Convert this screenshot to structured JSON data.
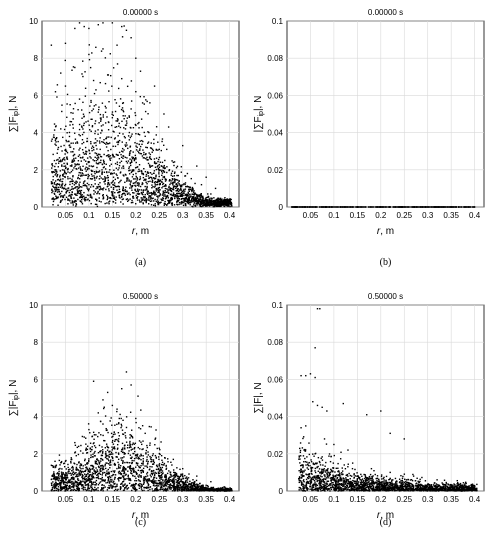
{
  "figure": {
    "panels": [
      {
        "id": "a",
        "title": "0.00000 s",
        "xlabel": "r, m",
        "ylabel": "∑|F_ip|, N",
        "caption": "(a)"
      },
      {
        "id": "b",
        "title": "0.00000 s",
        "xlabel": "r, m",
        "ylabel": "|∑F_ip|, N",
        "caption": "(b)"
      },
      {
        "id": "c",
        "title": "0.50000 s",
        "xlabel": "r, m",
        "ylabel": "∑|F_ip|, N",
        "caption": "(c)"
      },
      {
        "id": "d",
        "title": "0.50000 s",
        "xlabel": "r, m",
        "ylabel": "∑|F|, N",
        "caption": "(d)"
      }
    ]
  },
  "chart_data": [
    {
      "type": "scatter",
      "title": "0.00000 s",
      "xlabel": "r, m",
      "ylabel": "∑|F_ip|, N",
      "xlim": [
        0,
        0.42
      ],
      "ylim": [
        0,
        10
      ],
      "xticks": [
        "0.05",
        "0.1",
        "0.15",
        "0.2",
        "0.25",
        "0.3",
        "0.35",
        "0.4"
      ],
      "yticks": [
        "0",
        "2",
        "4",
        "6",
        "8",
        "10"
      ],
      "grid": true,
      "points": [
        [
          0.02,
          8.7
        ],
        [
          0.04,
          7.2
        ],
        [
          0.05,
          8.8
        ],
        [
          0.07,
          9.6
        ],
        [
          0.08,
          9.9
        ],
        [
          0.09,
          9.7
        ],
        [
          0.1,
          9.6
        ],
        [
          0.12,
          9.8
        ],
        [
          0.13,
          9.9
        ],
        [
          0.15,
          9.9
        ],
        [
          0.17,
          9.7
        ],
        [
          0.18,
          9.5
        ],
        [
          0.19,
          9.1
        ],
        [
          0.05,
          6.5
        ],
        [
          0.07,
          7.5
        ],
        [
          0.1,
          8.2
        ],
        [
          0.13,
          8.5
        ],
        [
          0.16,
          8.7
        ],
        [
          0.2,
          8.0
        ],
        [
          0.21,
          7.3
        ],
        [
          0.24,
          6.5
        ],
        [
          0.26,
          5.0
        ],
        [
          0.06,
          5.5
        ],
        [
          0.08,
          5.8
        ],
        [
          0.11,
          6.8
        ],
        [
          0.14,
          7.1
        ],
        [
          0.17,
          6.9
        ],
        [
          0.2,
          6.2
        ],
        [
          0.23,
          5.6
        ],
        [
          0.27,
          4.3
        ],
        [
          0.3,
          3.3
        ],
        [
          0.33,
          2.2
        ],
        [
          0.35,
          1.6
        ],
        [
          0.37,
          1.0
        ],
        [
          0.39,
          0.5
        ],
        [
          0.4,
          0.2
        ],
        [
          0.03,
          1.8
        ],
        [
          0.03,
          3.5
        ],
        [
          0.04,
          4.2
        ],
        [
          0.09,
          4.5
        ],
        [
          0.12,
          5.1
        ],
        [
          0.15,
          4.8
        ],
        [
          0.18,
          4.4
        ],
        [
          0.22,
          3.8
        ],
        [
          0.25,
          3.1
        ],
        [
          0.28,
          2.4
        ],
        [
          0.31,
          1.8
        ],
        [
          0.34,
          1.2
        ],
        [
          0.36,
          0.7
        ],
        [
          0.38,
          0.4
        ],
        [
          0.05,
          2.2
        ],
        [
          0.08,
          2.8
        ],
        [
          0.11,
          3.2
        ],
        [
          0.14,
          3.4
        ],
        [
          0.17,
          3.0
        ],
        [
          0.2,
          2.6
        ],
        [
          0.23,
          2.2
        ],
        [
          0.26,
          1.9
        ],
        [
          0.29,
          1.3
        ],
        [
          0.32,
          0.9
        ],
        [
          0.35,
          0.5
        ],
        [
          0.06,
          0.9
        ],
        [
          0.1,
          1.2
        ],
        [
          0.13,
          1.5
        ],
        [
          0.16,
          1.7
        ],
        [
          0.19,
          1.4
        ],
        [
          0.22,
          1.1
        ],
        [
          0.25,
          0.8
        ],
        [
          0.28,
          0.6
        ],
        [
          0.31,
          0.4
        ],
        [
          0.34,
          0.2
        ],
        [
          0.37,
          0.1
        ]
      ],
      "density_note": "cloud of ~10000 points; highest density near r=0.2-0.35 m below 2 N"
    },
    {
      "type": "scatter",
      "title": "0.00000 s",
      "xlabel": "r, m",
      "ylabel": "|∑F_ip|, N",
      "xlim": [
        0,
        0.42
      ],
      "ylim": [
        0,
        0.1
      ],
      "xticks": [
        "0.05",
        "0.1",
        "0.15",
        "0.2",
        "0.25",
        "0.3",
        "0.35",
        "0.4"
      ],
      "yticks": [
        "0",
        "0.02",
        "0.04",
        "0.06",
        "0.08",
        "0.1"
      ],
      "grid": true,
      "points": [
        [
          0.01,
          0
        ],
        [
          0.05,
          0
        ],
        [
          0.1,
          0
        ],
        [
          0.15,
          0
        ],
        [
          0.2,
          0
        ],
        [
          0.25,
          0
        ],
        [
          0.3,
          0
        ],
        [
          0.35,
          0
        ],
        [
          0.4,
          0
        ]
      ],
      "note": "all points lie at 0 from r=0.01 to r=0.4"
    },
    {
      "type": "scatter",
      "title": "0.50000 s",
      "xlabel": "r, m",
      "ylabel": "∑|F_ip|, N",
      "xlim": [
        0,
        0.42
      ],
      "ylim": [
        0,
        10
      ],
      "xticks": [
        "0.05",
        "0.1",
        "0.15",
        "0.2",
        "0.25",
        "0.3",
        "0.35",
        "0.4"
      ],
      "yticks": [
        "0",
        "2",
        "4",
        "6",
        "8",
        "10"
      ],
      "grid": true,
      "points": [
        [
          0.11,
          5.9
        ],
        [
          0.14,
          5.3
        ],
        [
          0.17,
          5.5
        ],
        [
          0.18,
          6.4
        ],
        [
          0.19,
          5.7
        ],
        [
          0.13,
          4.9
        ],
        [
          0.15,
          4.6
        ],
        [
          0.12,
          4.2
        ],
        [
          0.16,
          4.4
        ],
        [
          0.2,
          3.9
        ],
        [
          0.1,
          3.3
        ],
        [
          0.13,
          3.6
        ],
        [
          0.22,
          3.1
        ],
        [
          0.07,
          2.6
        ],
        [
          0.09,
          2.9
        ],
        [
          0.25,
          2.3
        ],
        [
          0.05,
          1.6
        ],
        [
          0.28,
          1.7
        ],
        [
          0.3,
          1.2
        ],
        [
          0.33,
          0.8
        ],
        [
          0.36,
          0.5
        ],
        [
          0.39,
          0.2
        ],
        [
          0.03,
          0.3
        ],
        [
          0.04,
          0.8
        ]
      ],
      "density_note": "dense cloud below 2 N for r=0.05-0.4 m, peak values near r=0.15-0.2 m"
    },
    {
      "type": "scatter",
      "title": "0.50000 s",
      "xlabel": "r, m",
      "ylabel": "∑|F|, N",
      "xlim": [
        0,
        0.42
      ],
      "ylim": [
        0,
        0.1
      ],
      "xticks": [
        "0.05",
        "0.1",
        "0.15",
        "0.2",
        "0.25",
        "0.3",
        "0.35",
        "0.4"
      ],
      "yticks": [
        "0",
        "0.02",
        "0.04",
        "0.06",
        "0.08",
        "0.1"
      ],
      "grid": true,
      "points": [
        [
          0.065,
          0.098
        ],
        [
          0.07,
          0.098
        ],
        [
          0.06,
          0.077
        ],
        [
          0.03,
          0.062
        ],
        [
          0.04,
          0.062
        ],
        [
          0.05,
          0.063
        ],
        [
          0.06,
          0.061
        ],
        [
          0.055,
          0.048
        ],
        [
          0.065,
          0.046
        ],
        [
          0.075,
          0.045
        ],
        [
          0.085,
          0.043
        ],
        [
          0.12,
          0.047
        ],
        [
          0.17,
          0.041
        ],
        [
          0.2,
          0.043
        ],
        [
          0.22,
          0.031
        ],
        [
          0.25,
          0.028
        ],
        [
          0.03,
          0.034
        ],
        [
          0.04,
          0.035
        ],
        [
          0.08,
          0.028
        ],
        [
          0.1,
          0.025
        ],
        [
          0.13,
          0.022
        ],
        [
          0.06,
          0.02
        ],
        [
          0.14,
          0.015
        ],
        [
          0.18,
          0.012
        ],
        [
          0.22,
          0.01
        ],
        [
          0.27,
          0.008
        ],
        [
          0.32,
          0.006
        ],
        [
          0.37,
          0.004
        ],
        [
          0.4,
          0.002
        ]
      ],
      "density_note": "dense band below 0.01 N from r=0.03 to r=0.4 m decreasing with r"
    }
  ]
}
